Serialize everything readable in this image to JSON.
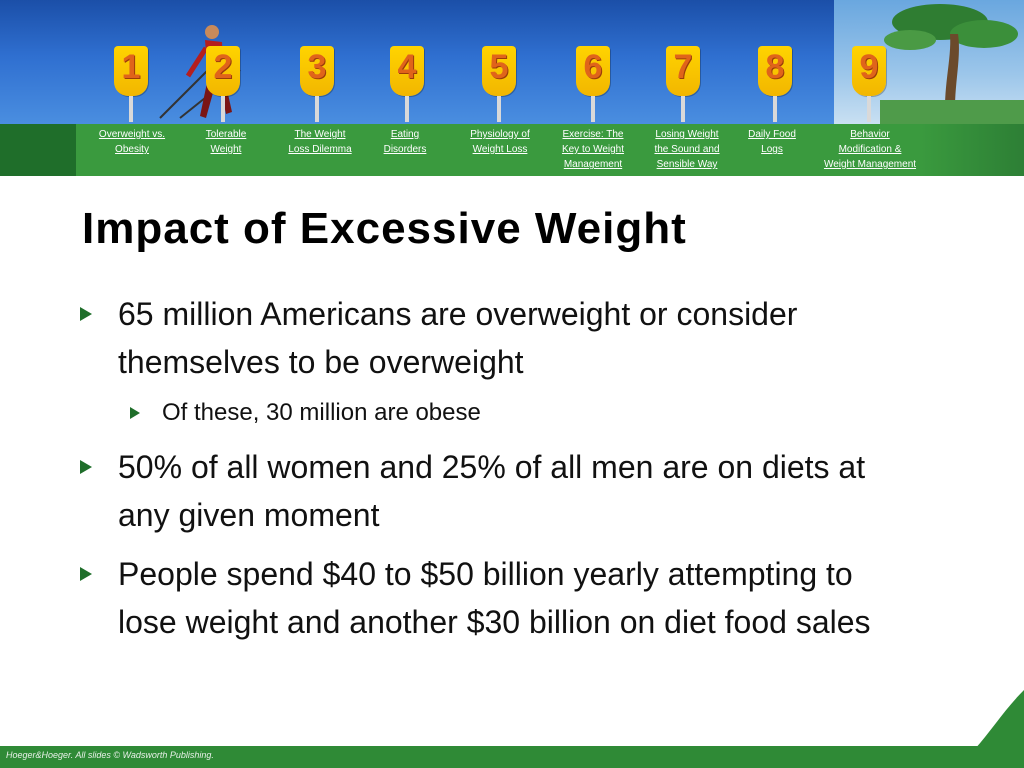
{
  "nav": {
    "items": [
      {
        "num": "1",
        "label_line1": "Overweight vs.",
        "label_line2": "Obesity",
        "label_line3": ""
      },
      {
        "num": "2",
        "label_line1": "Tolerable",
        "label_line2": "Weight",
        "label_line3": ""
      },
      {
        "num": "3",
        "label_line1": "The Weight",
        "label_line2": "Loss Dilemma",
        "label_line3": ""
      },
      {
        "num": "4",
        "label_line1": "Eating",
        "label_line2": "Disorders",
        "label_line3": ""
      },
      {
        "num": "5",
        "label_line1": "Physiology of",
        "label_line2": "Weight Loss",
        "label_line3": ""
      },
      {
        "num": "6",
        "label_line1": "Exercise: The",
        "label_line2": "Key to Weight",
        "label_line3": "Management"
      },
      {
        "num": "7",
        "label_line1": "Losing Weight",
        "label_line2": "the Sound and",
        "label_line3": "Sensible Way"
      },
      {
        "num": "8",
        "label_line1": "Daily Food",
        "label_line2": "Logs",
        "label_line3": ""
      },
      {
        "num": "9",
        "label_line1": "Behavior",
        "label_line2": "Modification &",
        "label_line3": "Weight Management"
      }
    ]
  },
  "slide": {
    "title": "Impact of Excessive Weight",
    "bullets": {
      "b1": "65 million Americans are overweight or consider themselves to be overweight",
      "b1_sub1": "Of these, 30 million are obese",
      "b2": "50% of all women and 25% of all men are on diets at any given moment",
      "b3": "People spend $40 to $50 billion yearly attempting to lose weight and another $30 billion on diet food sales"
    }
  },
  "footer": {
    "text": "Hoeger&Hoeger. All slides © Wadsworth Publishing."
  },
  "colors": {
    "header_blue": "#2f6fd0",
    "nav_green": "#3a9a3e",
    "sign_yellow": "#ffd400",
    "sign_number": "#e0641a",
    "bullet_arrow": "#1f6e2a"
  }
}
